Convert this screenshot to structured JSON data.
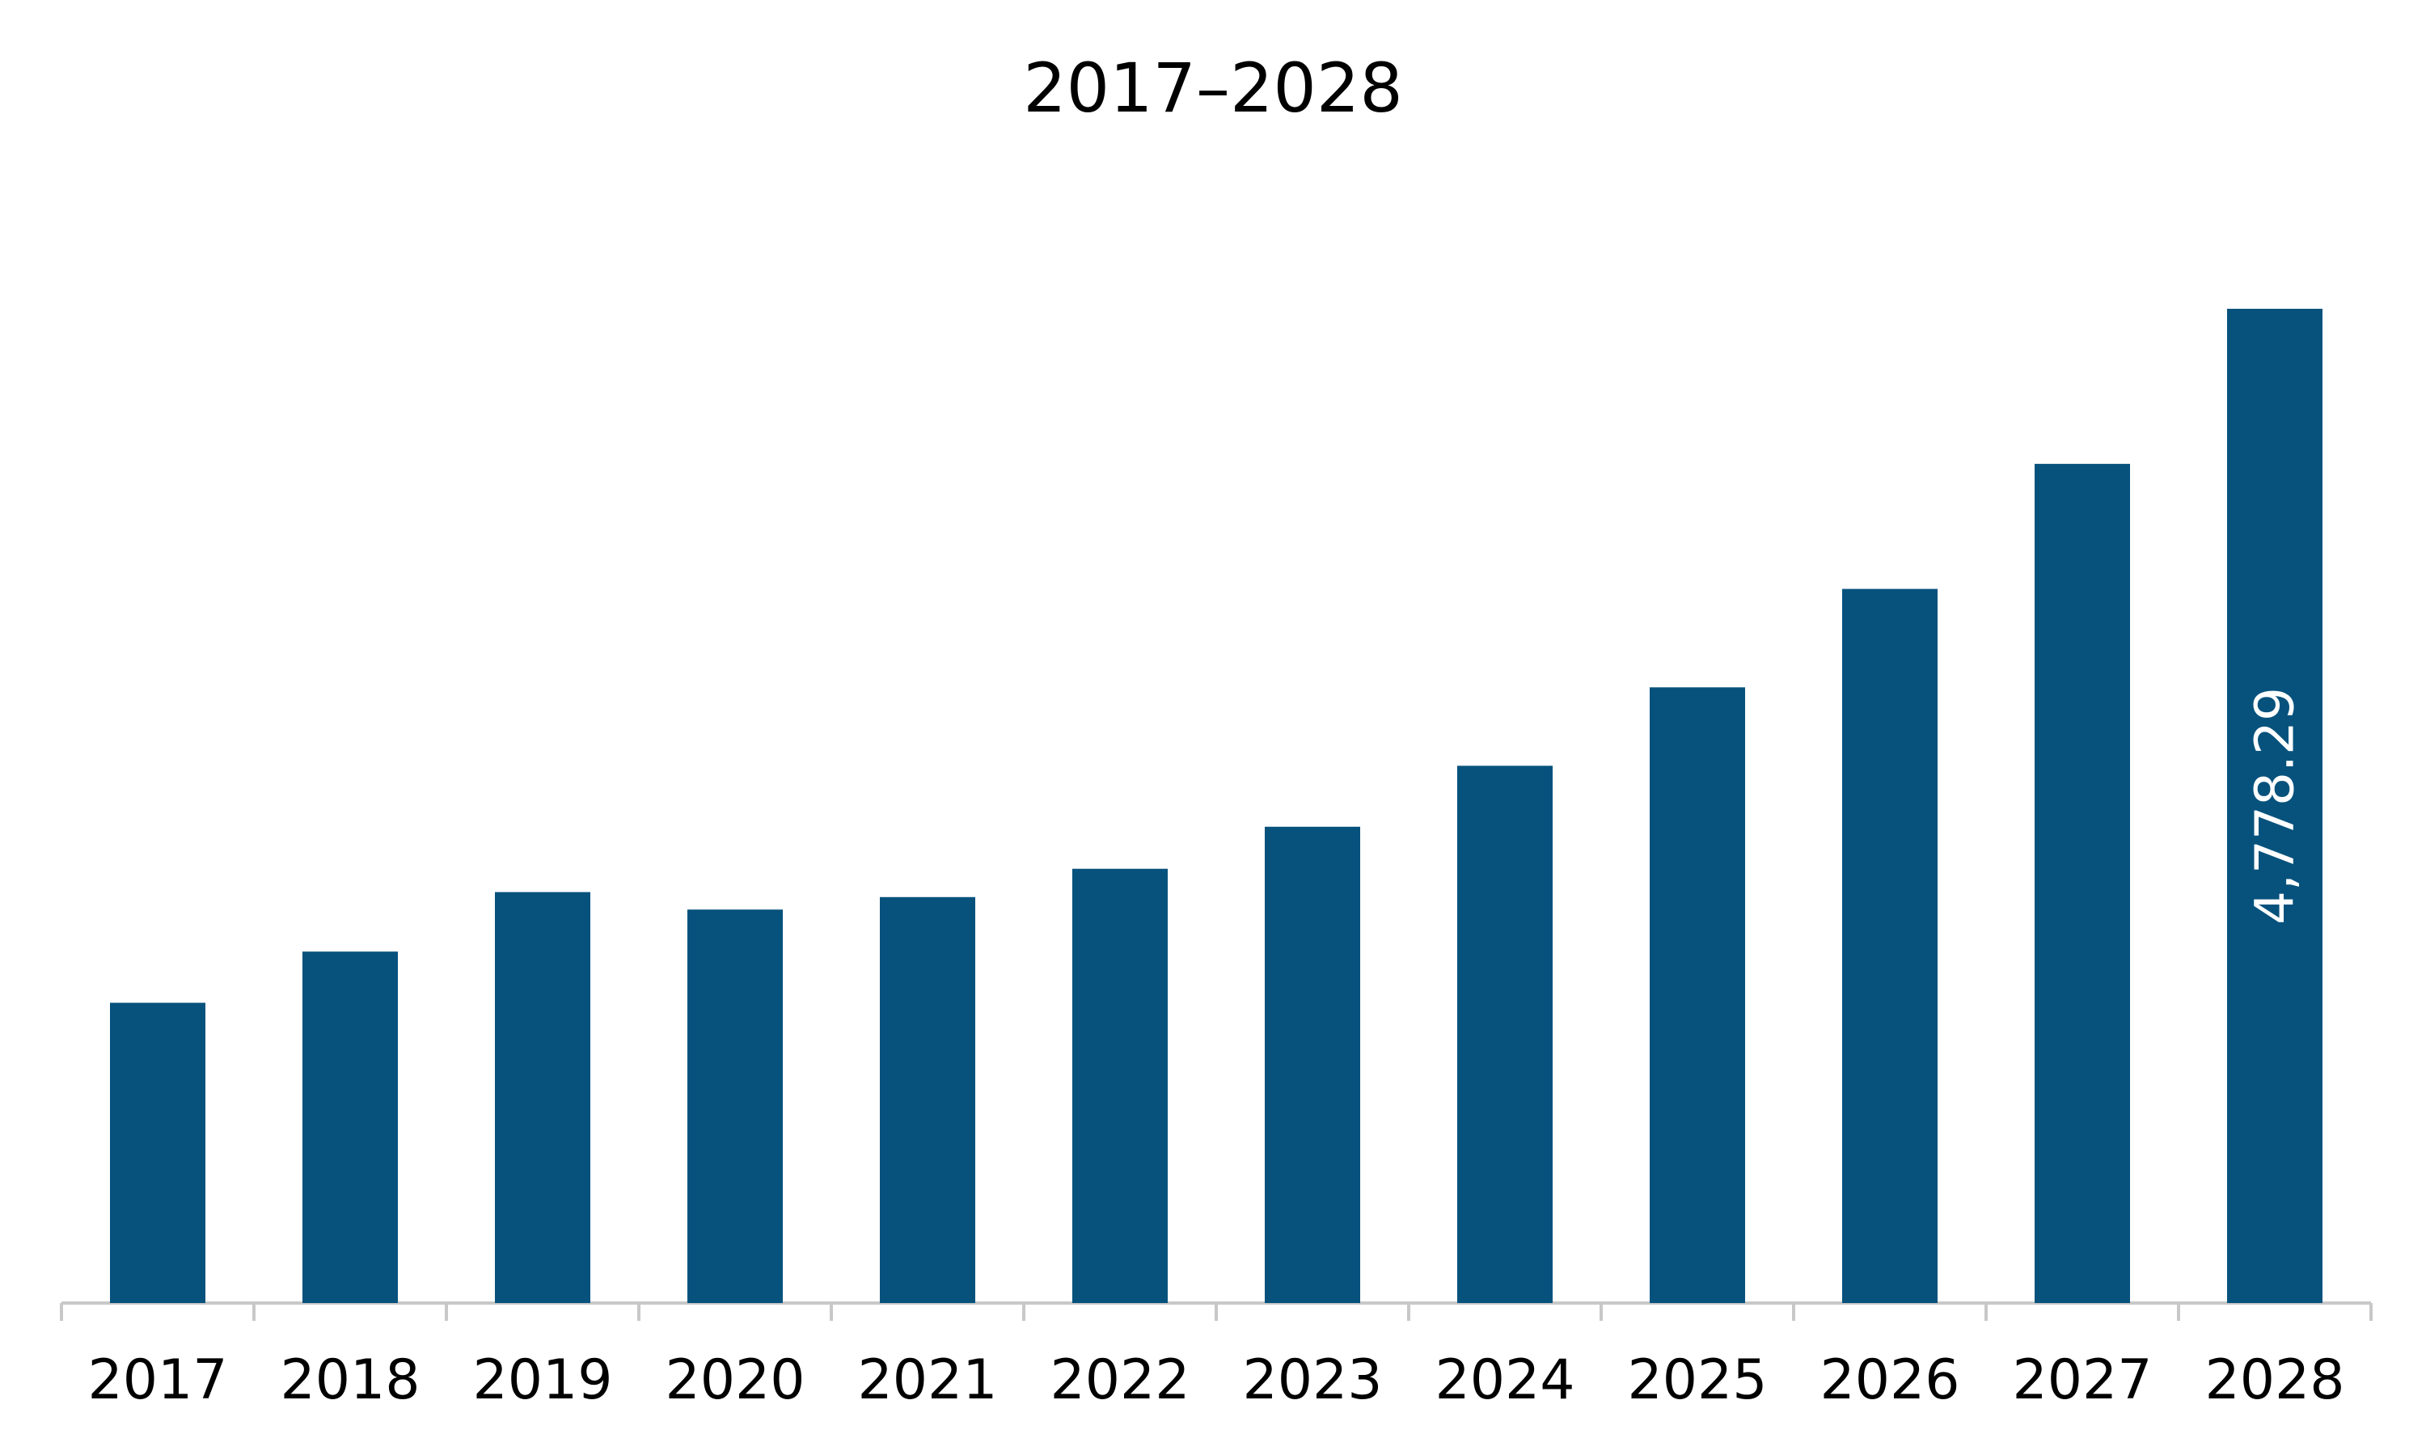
{
  "chart_data": {
    "type": "bar",
    "title": "2017–2028",
    "xlabel": "",
    "ylabel": "",
    "categories": [
      "2017",
      "2018",
      "2019",
      "2020",
      "2021",
      "2022",
      "2023",
      "2024",
      "2025",
      "2026",
      "2027",
      "2028"
    ],
    "values": [
      1443,
      1689,
      1975,
      1891,
      1951,
      2087,
      2289,
      2582,
      2959,
      3432,
      4033,
      4778.29
    ],
    "ylim": [
      0,
      4778.29
    ],
    "grid": false,
    "legend": "none",
    "data_labels": [
      {
        "category": "2028",
        "text": "4,778.29"
      }
    ],
    "colors": {
      "bar": "#07527D",
      "axis": "#C8C8C8",
      "text": "#000000",
      "data_label": "#FFFFFF"
    }
  }
}
